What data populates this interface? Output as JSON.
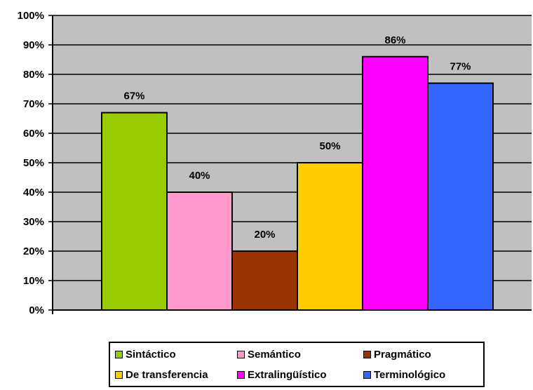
{
  "chart_data": {
    "type": "bar",
    "categories": [
      "Sintáctico",
      "Semántico",
      "Pragmático",
      "De transferencia",
      "Extralingüístico",
      "Terminológico"
    ],
    "values": [
      67,
      40,
      20,
      50,
      86,
      77
    ],
    "data_labels": [
      "67%",
      "40%",
      "20%",
      "50%",
      "86%",
      "77%"
    ],
    "colors": [
      "#99CC00",
      "#FF99CC",
      "#993300",
      "#FFCC00",
      "#FF00FF",
      "#3366FF"
    ],
    "ylim": [
      0,
      100
    ],
    "yticks": [
      0,
      10,
      20,
      30,
      40,
      50,
      60,
      70,
      80,
      90,
      100
    ],
    "ytick_labels": [
      "0%",
      "10%",
      "20%",
      "30%",
      "40%",
      "50%",
      "60%",
      "70%",
      "80%",
      "90%",
      "100%"
    ],
    "grid": true,
    "plot_background": "#C0C0C0",
    "legend_position": "bottom",
    "title": "",
    "xlabel": "",
    "ylabel": ""
  }
}
